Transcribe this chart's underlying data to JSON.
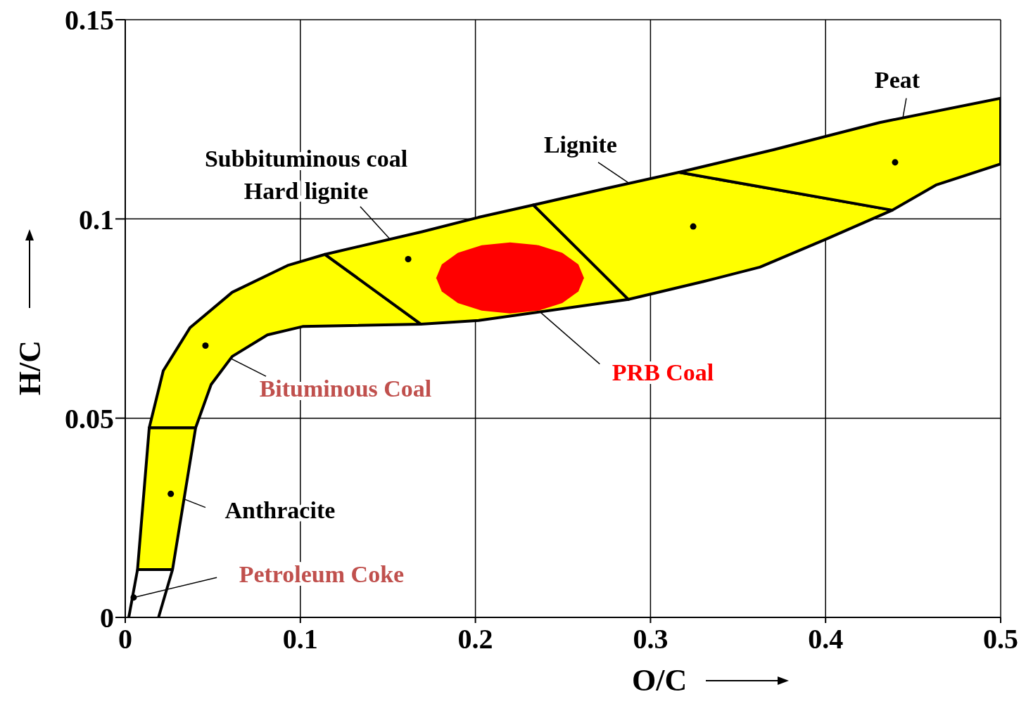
{
  "chart_data": {
    "type": "scatter",
    "xlabel": "O/C",
    "ylabel": "H/C",
    "xlim": [
      0,
      0.5
    ],
    "ylim": [
      0,
      0.15
    ],
    "xticks": [
      0,
      0.1,
      0.2,
      0.3,
      0.4,
      0.5
    ],
    "yticks": [
      0,
      0.05,
      0.1,
      0.15
    ],
    "grid": true,
    "legend": false,
    "series": [
      {
        "type": "area",
        "color": "#ffff00",
        "x": [
          0.007,
          0.0137,
          0.0402,
          0.027
        ],
        "values": [
          0.012,
          0.0476,
          0.0476,
          0.012
        ]
      },
      {
        "type": "area",
        "color": "#ffff00",
        "x": [
          0.0137,
          0.0217,
          0.037,
          0.0611,
          0.0932,
          0.1141,
          0.1688,
          0.1013,
          0.0812,
          0.0611,
          0.049,
          0.0402
        ],
        "values": [
          0.0476,
          0.0619,
          0.0727,
          0.0816,
          0.0884,
          0.0911,
          0.0736,
          0.073,
          0.0709,
          0.0655,
          0.0584,
          0.0476
        ]
      },
      {
        "type": "area",
        "color": "#ffff00",
        "x": [
          0.1141,
          0.1696,
          0.2018,
          0.2331,
          0.2874,
          0.2018,
          0.1688
        ],
        "values": [
          0.0911,
          0.0968,
          0.1004,
          0.1035,
          0.0798,
          0.0745,
          0.0736
        ]
      },
      {
        "type": "area",
        "color": "#ffff00",
        "x": [
          0.2331,
          0.2741,
          0.3163,
          0.4381,
          0.4007,
          0.3625,
          0.3304,
          0.2874
        ],
        "values": [
          0.1035,
          0.1076,
          0.1117,
          0.1022,
          0.095,
          0.0879,
          0.0843,
          0.0798
        ]
      },
      {
        "type": "area",
        "color": "#ffff00",
        "x": [
          0.3163,
          0.3706,
          0.4309,
          0.5,
          0.5,
          0.463,
          0.4381
        ],
        "values": [
          0.1117,
          0.1174,
          0.1242,
          0.1303,
          0.1138,
          0.1085,
          0.1022
        ]
      },
      {
        "type": "area",
        "color": "#ff0000",
        "x": [
          0.262,
          0.2588,
          0.2496,
          0.236,
          0.2198,
          0.2036,
          0.19,
          0.1808,
          0.1776,
          0.1808,
          0.19,
          0.2036,
          0.2198,
          0.236,
          0.2496,
          0.2588
        ],
        "values": [
          0.0852,
          0.0886,
          0.0915,
          0.0934,
          0.0941,
          0.0934,
          0.0915,
          0.0886,
          0.0852,
          0.0818,
          0.0789,
          0.077,
          0.0763,
          0.077,
          0.0789,
          0.0818
        ]
      },
      {
        "type": "line",
        "color": "#000000",
        "x": [
          0.002,
          0.007
        ],
        "values": [
          0,
          0.012
        ]
      },
      {
        "type": "line",
        "color": "#000000",
        "x": [
          0.019,
          0.027
        ],
        "values": [
          0,
          0.012
        ]
      },
      {
        "color": "#000000",
        "marker": "circle",
        "x": [
          0.0048,
          0.026,
          0.0458,
          0.1616,
          0.3244,
          0.4397
        ],
        "values": [
          0.005,
          0.031,
          0.0682,
          0.0899,
          0.0981,
          0.1142
        ]
      }
    ],
    "annotations": [
      {
        "text": "Petroleum Coke",
        "x": 0.0048,
        "y": 0.005
      },
      {
        "text": "Anthracite",
        "x": 0.026,
        "y": 0.031
      },
      {
        "text": "Bituminous Coal",
        "x": 0.0458,
        "y": 0.0682
      },
      {
        "text": "Subbituminous coal\nHard lignite",
        "x": 0.1616,
        "y": 0.0899
      },
      {
        "text": "Lignite",
        "x": 0.3244,
        "y": 0.0981
      },
      {
        "text": "Peat",
        "x": 0.4397,
        "y": 0.1142
      },
      {
        "text": "PRB Coal",
        "x": 0.236,
        "y": 0.077
      }
    ]
  }
}
